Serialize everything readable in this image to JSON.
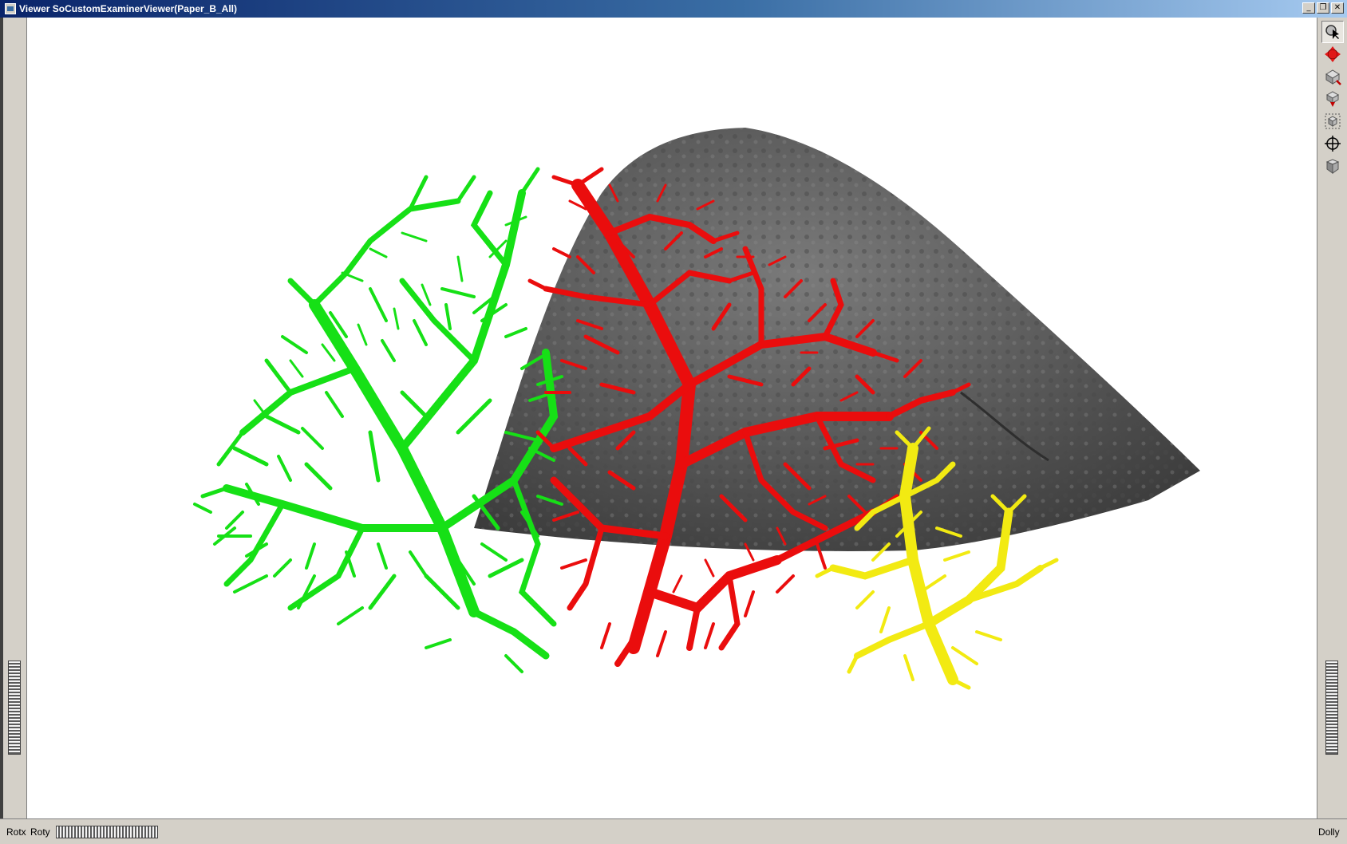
{
  "window": {
    "title": "Viewer SoCustomExaminerViewer(Paper_B_All)"
  },
  "title_buttons": {
    "minimize": "_",
    "restore": "❐",
    "close": "✕"
  },
  "toolbar": {
    "tools": [
      {
        "name": "select-pick",
        "icon": "arrow-pointer-icon",
        "active": true
      },
      {
        "name": "view-rotate",
        "icon": "rotate-arrows-icon",
        "active": false
      },
      {
        "name": "home",
        "icon": "home-view-icon",
        "active": false
      },
      {
        "name": "set-home",
        "icon": "set-home-icon",
        "active": false
      },
      {
        "name": "view-all",
        "icon": "view-all-icon",
        "active": false
      },
      {
        "name": "seek",
        "icon": "seek-crosshair-icon",
        "active": false
      },
      {
        "name": "projection",
        "icon": "perspective-cube-icon",
        "active": false
      }
    ]
  },
  "bottom": {
    "rotx_label": "Rotx",
    "roty_label": "Roty",
    "dolly_label": "Dolly"
  },
  "scene": {
    "colors": {
      "green_tree": "#16e016",
      "red_tree": "#ea0d0d",
      "yellow_tree": "#f2ea12",
      "organ": "#5c5c5c"
    }
  }
}
